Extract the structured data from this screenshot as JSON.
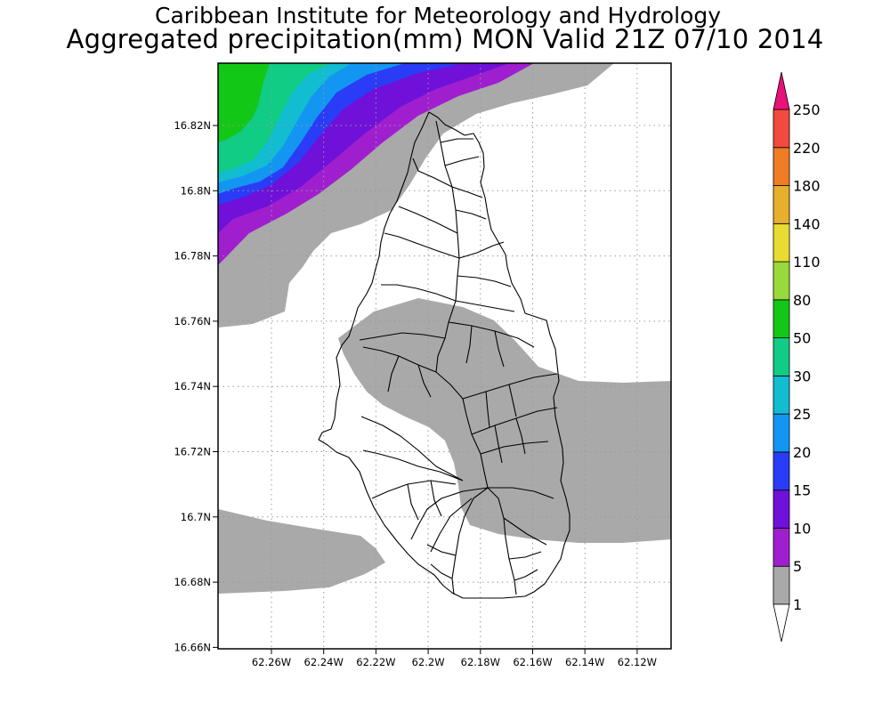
{
  "title": {
    "line1": "Caribbean Institute for Meteorology and Hydrology",
    "line2": "Aggregated precipitation(mm) MON Valid 21Z 07/10 2014"
  },
  "map": {
    "lat_ticks": [
      "16.82N",
      "16.8N",
      "16.78N",
      "16.76N",
      "16.74N",
      "16.72N",
      "16.7N",
      "16.68N",
      "16.66N"
    ],
    "lon_ticks": [
      "62.26W",
      "62.24W",
      "62.22W",
      "62.2W",
      "62.18W",
      "62.16W",
      "62.14W",
      "62.12W"
    ],
    "grid": true
  },
  "colorbar": {
    "levels": [
      "1",
      "5",
      "10",
      "15",
      "20",
      "25",
      "30",
      "50",
      "80",
      "110",
      "140",
      "180",
      "220",
      "250"
    ],
    "colors": [
      "#a9a9a9",
      "#9f1fcf",
      "#6f11d8",
      "#2a3cf5",
      "#1396f2",
      "#12bcd1",
      "#10cc85",
      "#13c716",
      "#9ad93a",
      "#e8dc32",
      "#e6af2c",
      "#f07c25",
      "#f24a3e",
      "#e8127a"
    ],
    "over_color": "#e8127a",
    "under_color": "#ffffff"
  },
  "precip_field": {
    "colors": {
      "band_1": "#a9a9a9",
      "band_5": "#9f1fcf",
      "band_10": "#6f11d8",
      "band_15": "#2a3cf5",
      "band_20": "#1396f2",
      "band_25": "#12bcd1",
      "band_30": "#10cc85",
      "band_50": "#13c716"
    }
  }
}
